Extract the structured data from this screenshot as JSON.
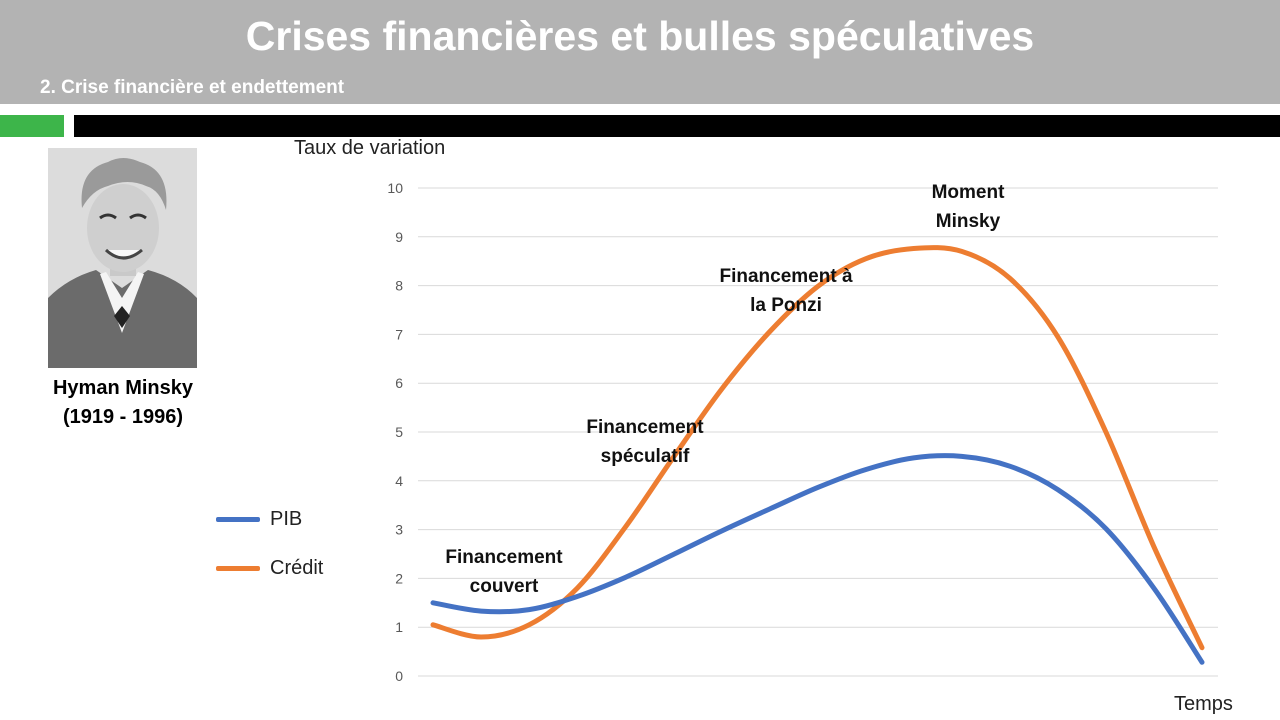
{
  "header": {
    "title": "Crises financières et bulles spéculatives",
    "subtitle": "2. Crise financière et endettement"
  },
  "colors": {
    "header_bg": "#b3b3b3",
    "accent_green": "#3db54a",
    "bar_black": "#000000"
  },
  "portrait": {
    "name": "Hyman Minsky",
    "years": "(1919 - 1996)"
  },
  "chart_data": {
    "type": "line",
    "ylabel": "Taux de variation",
    "xlabel": "Temps",
    "ylim": [
      0,
      10
    ],
    "yticks": [
      0,
      1,
      2,
      3,
      4,
      5,
      6,
      7,
      8,
      9,
      10
    ],
    "grid": true,
    "legend_position": "left",
    "series": [
      {
        "name": "PIB",
        "color": "#4472c4",
        "x": [
          0,
          1,
          2,
          3,
          4,
          5,
          6,
          7,
          8,
          9,
          10,
          11,
          12,
          13,
          14,
          15,
          16
        ],
        "values": [
          1.5,
          1.33,
          1.36,
          1.63,
          2.02,
          2.49,
          2.97,
          3.42,
          3.86,
          4.23,
          4.47,
          4.5,
          4.3,
          3.82,
          3.02,
          1.8,
          0.28
        ]
      },
      {
        "name": "Crédit",
        "color": "#ed7d31",
        "x": [
          0,
          1,
          2,
          3,
          4,
          5,
          6,
          7,
          8,
          9,
          10,
          11,
          12,
          13,
          14,
          15,
          16
        ],
        "values": [
          1.05,
          0.8,
          1.05,
          1.8,
          3.05,
          4.48,
          5.87,
          7.05,
          7.98,
          8.55,
          8.76,
          8.7,
          8.15,
          6.95,
          5.0,
          2.65,
          0.58
        ]
      }
    ],
    "annotations": [
      {
        "id": "couvert",
        "text": "Financement\ncouvert"
      },
      {
        "id": "speculatif",
        "text": "Financement\nspéculatif"
      },
      {
        "id": "ponzi",
        "text": "Financement à\nla Ponzi"
      },
      {
        "id": "minsky",
        "text": "Moment\nMinsky"
      }
    ]
  }
}
